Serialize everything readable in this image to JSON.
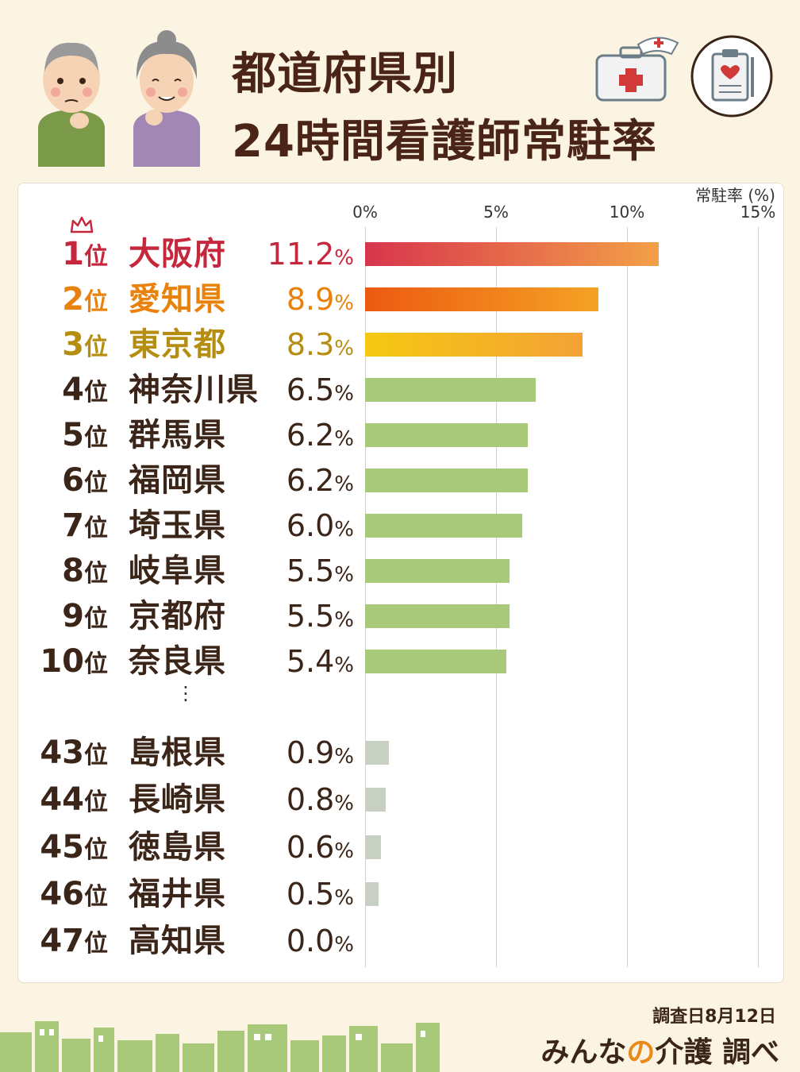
{
  "header": {
    "title_line1": "都道府県別",
    "title_line2": "24時間看護師常駐率"
  },
  "chart_data": {
    "type": "bar",
    "orientation": "horizontal",
    "title": "都道府県別 24時間看護師常駐率",
    "unit_label": "常駐率 (%)",
    "xlim": [
      0,
      15
    ],
    "ticks": [
      "0%",
      "5%",
      "10%",
      "15%"
    ],
    "grid": true,
    "rows": [
      {
        "rank": "1",
        "rank_suffix": "位",
        "prefecture": "大阪府",
        "value": 11.2,
        "label": "11.2",
        "pct": "%"
      },
      {
        "rank": "2",
        "rank_suffix": "位",
        "prefecture": "愛知県",
        "value": 8.9,
        "label": "8.9",
        "pct": "%"
      },
      {
        "rank": "3",
        "rank_suffix": "位",
        "prefecture": "東京都",
        "value": 8.3,
        "label": "8.3",
        "pct": "%"
      },
      {
        "rank": "4",
        "rank_suffix": "位",
        "prefecture": "神奈川県",
        "value": 6.5,
        "label": "6.5",
        "pct": "%"
      },
      {
        "rank": "5",
        "rank_suffix": "位",
        "prefecture": "群馬県",
        "value": 6.2,
        "label": "6.2",
        "pct": "%"
      },
      {
        "rank": "6",
        "rank_suffix": "位",
        "prefecture": "福岡県",
        "value": 6.2,
        "label": "6.2",
        "pct": "%"
      },
      {
        "rank": "7",
        "rank_suffix": "位",
        "prefecture": "埼玉県",
        "value": 6.0,
        "label": "6.0",
        "pct": "%"
      },
      {
        "rank": "8",
        "rank_suffix": "位",
        "prefecture": "岐阜県",
        "value": 5.5,
        "label": "5.5",
        "pct": "%"
      },
      {
        "rank": "9",
        "rank_suffix": "位",
        "prefecture": "京都府",
        "value": 5.5,
        "label": "5.5",
        "pct": "%"
      },
      {
        "rank": "10",
        "rank_suffix": "位",
        "prefecture": "奈良県",
        "value": 5.4,
        "label": "5.4",
        "pct": "%"
      },
      {
        "rank": "43",
        "rank_suffix": "位",
        "prefecture": "島根県",
        "value": 0.9,
        "label": "0.9",
        "pct": "%"
      },
      {
        "rank": "44",
        "rank_suffix": "位",
        "prefecture": "長崎県",
        "value": 0.8,
        "label": "0.8",
        "pct": "%"
      },
      {
        "rank": "45",
        "rank_suffix": "位",
        "prefecture": "徳島県",
        "value": 0.6,
        "label": "0.6",
        "pct": "%"
      },
      {
        "rank": "46",
        "rank_suffix": "位",
        "prefecture": "福井県",
        "value": 0.5,
        "label": "0.5",
        "pct": "%"
      },
      {
        "rank": "47",
        "rank_suffix": "位",
        "prefecture": "高知県",
        "value": 0.0,
        "label": "0.0",
        "pct": "%"
      }
    ],
    "gap_marker": "⋮",
    "colors": {
      "rank1": "#c5283d",
      "rank2": "#e8820c",
      "rank3": "#b58d10",
      "default_text": "#3a2518",
      "bar_top10": "#a8c97a",
      "bar_bottom": "#c8d0c4"
    }
  },
  "footer": {
    "survey_date": "調査日8月12日",
    "brand_prefix": "みんな",
    "brand_no": "の",
    "brand_main": "介護",
    "brand_suffix": "調べ"
  },
  "icons": [
    "elderly-man-icon",
    "elderly-woman-icon",
    "first-aid-kit-icon",
    "nurse-cap-icon",
    "clipboard-heart-icon",
    "crown-icon",
    "cityscape-icon"
  ]
}
